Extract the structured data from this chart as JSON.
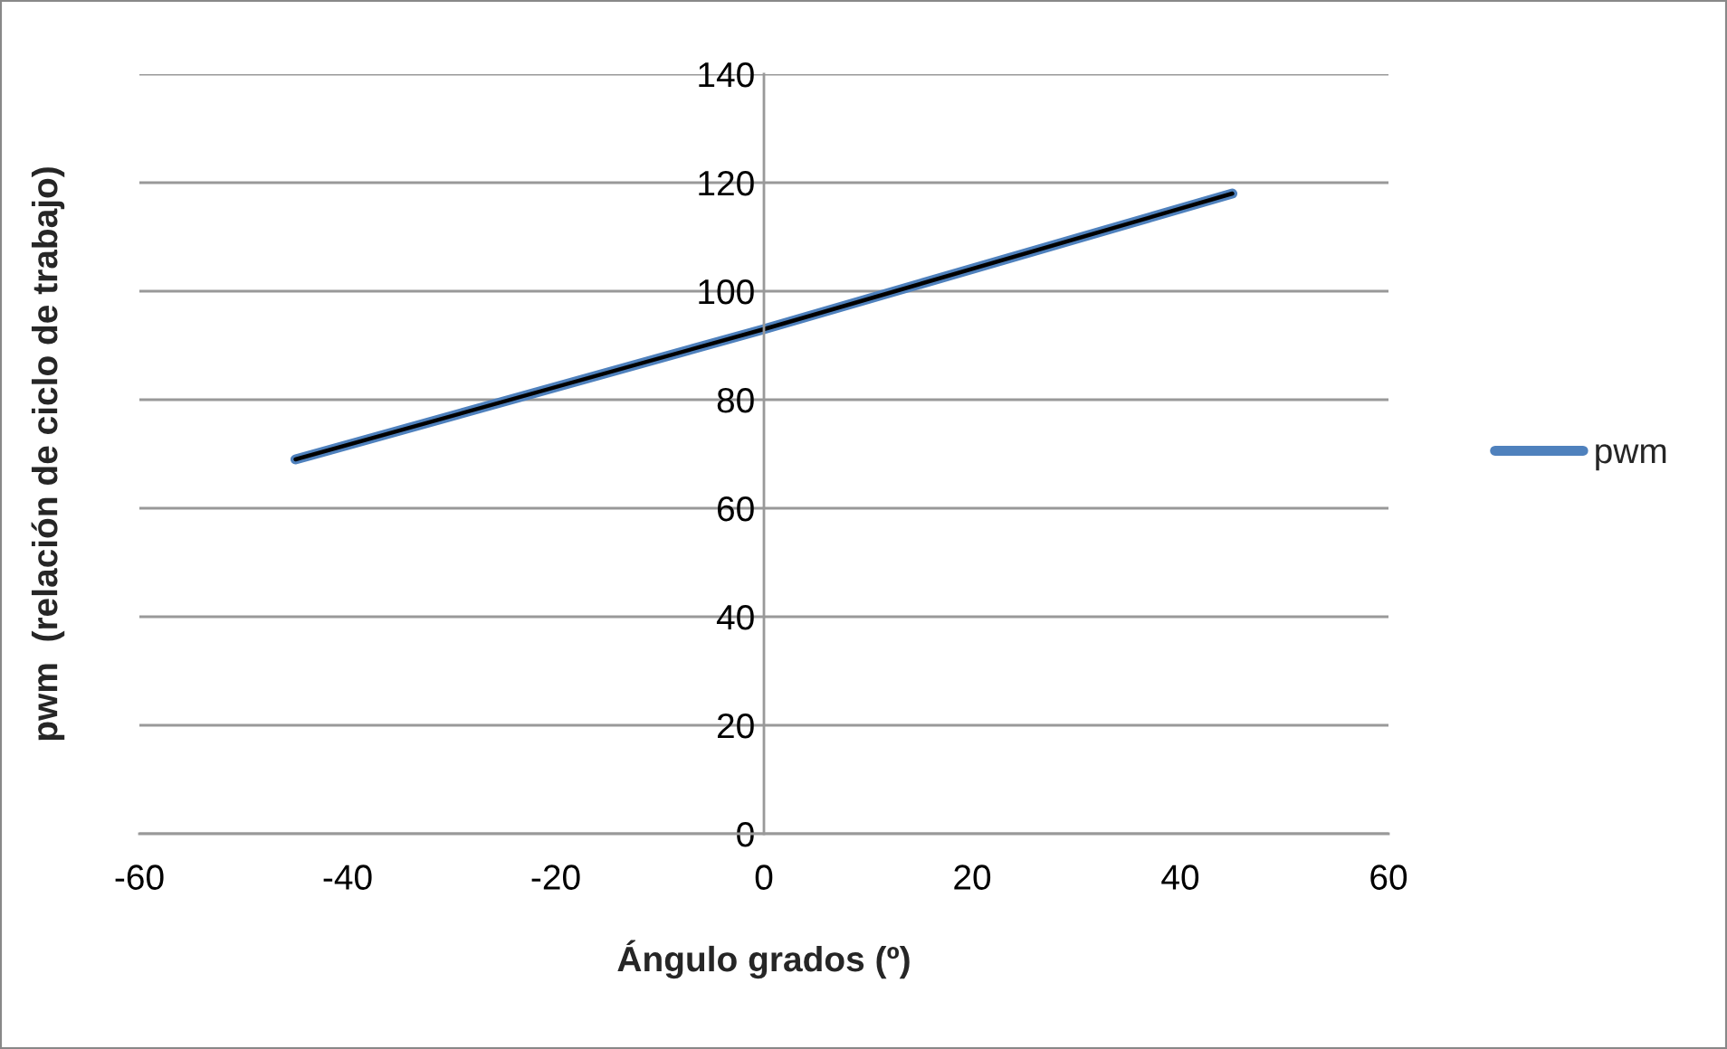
{
  "chart_data": {
    "type": "line",
    "xlabel": "Ángulo grados (º)",
    "ylabel": "pwm  (relación de ciclo de trabajo)",
    "x": [
      -45,
      0,
      45
    ],
    "series": [
      {
        "name": "pwm",
        "color": "#4f81bd",
        "values": [
          69,
          93,
          118
        ]
      },
      {
        "type": "line",
        "color": "#000000",
        "values": [
          69,
          93,
          118
        ]
      }
    ],
    "xlim": [
      -60,
      60
    ],
    "xticks": [
      -60,
      -40,
      -20,
      0,
      20,
      40,
      60
    ],
    "ylim": [
      0,
      140
    ],
    "yticks": [
      0,
      20,
      40,
      60,
      80,
      100,
      120,
      140
    ],
    "grid": "y",
    "legend": "right",
    "marker": "none",
    "line_style": "solid"
  }
}
